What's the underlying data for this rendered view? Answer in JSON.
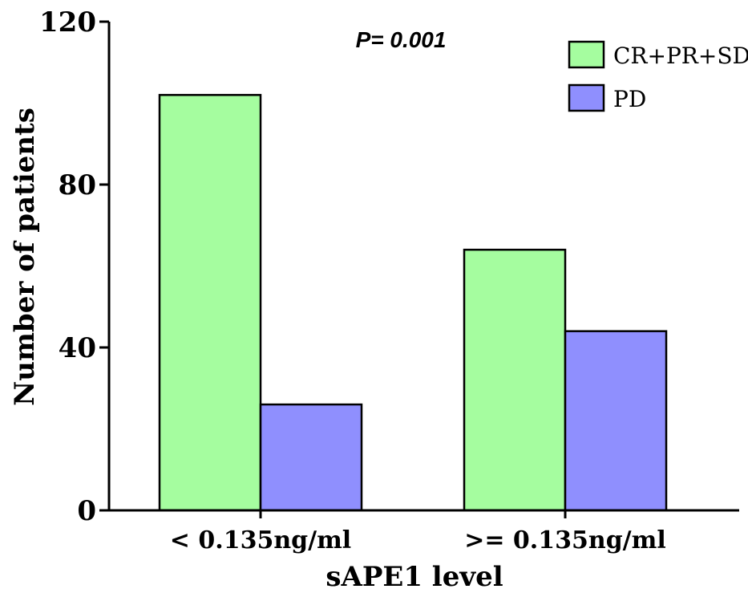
{
  "chart_data": {
    "type": "bar",
    "title": "",
    "xlabel": "sAPE1 level",
    "ylabel": "Number of patients",
    "ylim": [
      0,
      120
    ],
    "yticks": [
      0,
      40,
      80,
      120
    ],
    "categories": [
      "< 0.135ng/ml",
      ">= 0.135ng/ml"
    ],
    "series": [
      {
        "name": "CR+PR+SD",
        "color": "#a5fd9f",
        "values": [
          102,
          64
        ]
      },
      {
        "name": "PD",
        "color": "#8f8ffe",
        "values": [
          26,
          44
        ]
      }
    ],
    "annotation": "P= 0.001",
    "legend_position": "top-right",
    "grid": false
  }
}
